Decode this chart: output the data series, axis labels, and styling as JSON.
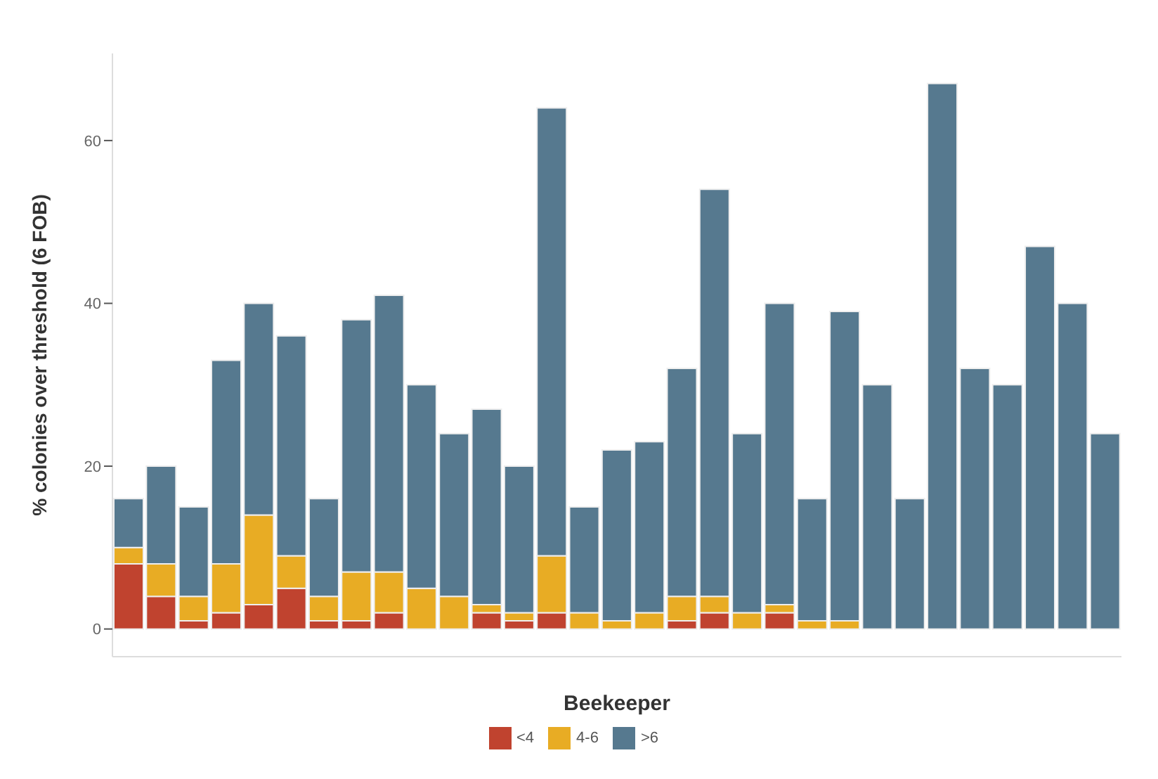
{
  "chart_data": {
    "type": "bar",
    "stacked": true,
    "xlabel": "Beekeeper",
    "ylabel": "% colonies over threshold (6 FOB)",
    "categories": [
      null,
      null,
      null,
      null,
      null,
      null,
      null,
      null,
      null,
      null,
      null,
      null,
      null,
      null,
      null,
      null,
      null,
      null,
      null,
      null,
      null,
      null,
      null,
      null,
      null,
      null,
      null,
      null,
      null,
      null,
      null
    ],
    "series": [
      {
        "name": "<4",
        "color": "#c0432f",
        "values": [
          8,
          4,
          1,
          2,
          3,
          5,
          1,
          1,
          2,
          0,
          0,
          2,
          1,
          2,
          0,
          0,
          0,
          1,
          2,
          0,
          2,
          0,
          0,
          0,
          0,
          0,
          0,
          0,
          0,
          0,
          0
        ]
      },
      {
        "name": "4-6",
        "color": "#e8ac24",
        "values": [
          2,
          4,
          3,
          6,
          11,
          4,
          3,
          6,
          5,
          5,
          4,
          1,
          1,
          7,
          2,
          1,
          2,
          3,
          2,
          2,
          1,
          1,
          1,
          0,
          0,
          0,
          0,
          0,
          0,
          0,
          0
        ]
      },
      {
        "name": ">6",
        "color": "#56798f",
        "values": [
          6,
          12,
          11,
          25,
          26,
          27,
          12,
          31,
          34,
          25,
          20,
          24,
          18,
          55,
          13,
          21,
          21,
          28,
          50,
          22,
          37,
          15,
          38,
          30,
          16,
          67,
          32,
          30,
          47,
          40,
          24
        ]
      }
    ],
    "ylim": [
      -3.4,
      70.7
    ],
    "yticks": [
      0,
      20,
      40,
      60
    ],
    "legend": "bottom"
  }
}
